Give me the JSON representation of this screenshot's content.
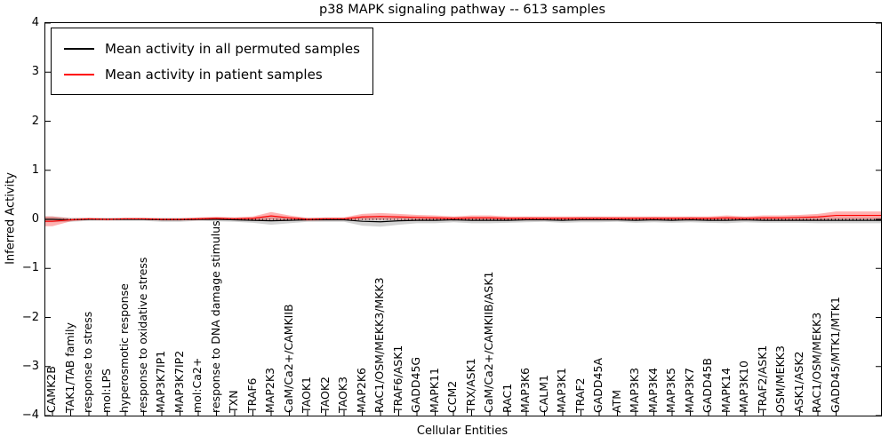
{
  "chart_data": {
    "type": "line",
    "title": "p38 MAPK signaling pathway -- 613 samples",
    "xlabel": "Cellular Entities",
    "ylabel": "Inferred Activity",
    "ylim": [
      -4,
      4
    ],
    "yticks": [
      -4,
      -3,
      -2,
      -1,
      0,
      1,
      2,
      3,
      4
    ],
    "ytick_labels": [
      "−4",
      "−3",
      "−2",
      "−1",
      "0",
      "1",
      "2",
      "3",
      "4"
    ],
    "grid": false,
    "legend_position": "upper left",
    "zero_line_style": "dotted",
    "categories": [
      "CAMK2B",
      "TAK1/TAB family",
      "response to stress",
      "mol:LPS",
      "hyperosmotic response",
      "response to oxidative stress",
      "MAP3K7IP1",
      "MAP3K7IP2",
      "mol:Ca2+",
      "response to DNA damage stimulus",
      "TXN",
      "TRAF6",
      "MAP2K3",
      "CaM/Ca2+/CAMKIIB",
      "TAOK1",
      "TAOK2",
      "TAOK3",
      "MAP2K6",
      "RAC1/OSM/MEKK3/MKK3",
      "TRAF6/ASK1",
      "GADD45G",
      "MAPK11",
      "CCM2",
      "TRX/ASK1",
      "CaM/Ca2+/CAMKIIB/ASK1",
      "RAC1",
      "MAP3K6",
      "CALM1",
      "MAP3K1",
      "TRAF2",
      "GADD45A",
      "ATM",
      "MAP3K3",
      "MAP3K4",
      "MAP3K5",
      "MAP3K7",
      "GADD45B",
      "MAPK14",
      "MAP3K10",
      "TRAF2/ASK1",
      "OSM/MEKK3",
      "ASK1/ASK2",
      "RAC1/OSM/MEKK3",
      "GADD45/MTK1/MTK1"
    ],
    "series": [
      {
        "key": "permuted",
        "name": "Mean activity in all permuted samples",
        "color": "#000000",
        "band_color": "rgba(130,130,130,0.35)",
        "values": [
          0.0,
          -0.01,
          0.0,
          0.0,
          0.0,
          0.0,
          -0.01,
          -0.01,
          0.0,
          0.0,
          -0.01,
          -0.02,
          -0.03,
          -0.02,
          -0.01,
          -0.01,
          -0.01,
          -0.04,
          -0.05,
          -0.03,
          -0.02,
          -0.02,
          -0.01,
          -0.02,
          -0.02,
          -0.02,
          -0.01,
          -0.01,
          -0.02,
          -0.01,
          -0.01,
          -0.01,
          -0.02,
          -0.01,
          -0.02,
          -0.01,
          -0.02,
          -0.02,
          -0.01,
          -0.02,
          -0.02,
          -0.02,
          -0.02,
          -0.02
        ],
        "band": [
          0.06,
          0.04,
          0.03,
          0.03,
          0.03,
          0.03,
          0.04,
          0.04,
          0.03,
          0.04,
          0.04,
          0.05,
          0.08,
          0.06,
          0.04,
          0.04,
          0.04,
          0.09,
          0.1,
          0.08,
          0.06,
          0.06,
          0.05,
          0.06,
          0.06,
          0.05,
          0.05,
          0.04,
          0.05,
          0.05,
          0.05,
          0.04,
          0.05,
          0.05,
          0.05,
          0.05,
          0.05,
          0.06,
          0.05,
          0.05,
          0.05,
          0.05,
          0.06,
          0.06
        ]
      },
      {
        "key": "patient",
        "name": "Mean activity in patient samples",
        "color": "#ff0000",
        "band_color": "rgba(255,0,0,0.30)",
        "values": [
          -0.04,
          -0.01,
          0.01,
          0.0,
          0.01,
          0.01,
          0.0,
          0.0,
          0.01,
          0.02,
          0.01,
          0.02,
          0.07,
          0.03,
          0.0,
          0.01,
          0.01,
          0.05,
          0.06,
          0.05,
          0.04,
          0.03,
          0.02,
          0.03,
          0.03,
          0.02,
          0.02,
          0.02,
          0.02,
          0.02,
          0.02,
          0.02,
          0.02,
          0.02,
          0.02,
          0.02,
          0.02,
          0.03,
          0.02,
          0.03,
          0.03,
          0.04,
          0.05,
          0.08
        ],
        "band": [
          0.1,
          0.03,
          0.02,
          0.02,
          0.02,
          0.02,
          0.02,
          0.02,
          0.03,
          0.03,
          0.03,
          0.04,
          0.08,
          0.05,
          0.03,
          0.03,
          0.03,
          0.06,
          0.07,
          0.06,
          0.05,
          0.05,
          0.04,
          0.05,
          0.05,
          0.04,
          0.04,
          0.04,
          0.04,
          0.04,
          0.04,
          0.04,
          0.04,
          0.04,
          0.04,
          0.04,
          0.04,
          0.05,
          0.04,
          0.05,
          0.05,
          0.05,
          0.06,
          0.08
        ]
      }
    ]
  }
}
